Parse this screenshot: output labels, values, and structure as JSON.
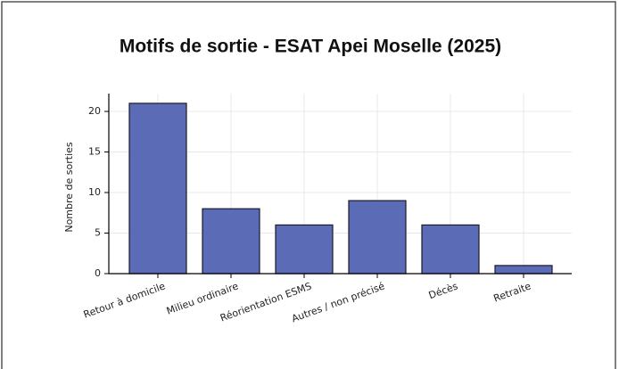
{
  "chart_data": {
    "type": "bar",
    "title": "Motifs de sortie - ESAT Apei Moselle (2025)",
    "y_label": "Nombre de sorties",
    "categories": [
      "Retour à domicile",
      "Milieu ordinaire",
      "Réorientation ESMS",
      "Autres / non précisé",
      "Décès",
      "Retraite"
    ],
    "values": [
      21,
      8,
      6,
      9,
      6,
      1
    ],
    "color": "#5b6bb5",
    "ylim": [
      0,
      22.2
    ],
    "yticks": [
      0,
      5,
      10,
      15,
      20
    ],
    "grid": true
  }
}
